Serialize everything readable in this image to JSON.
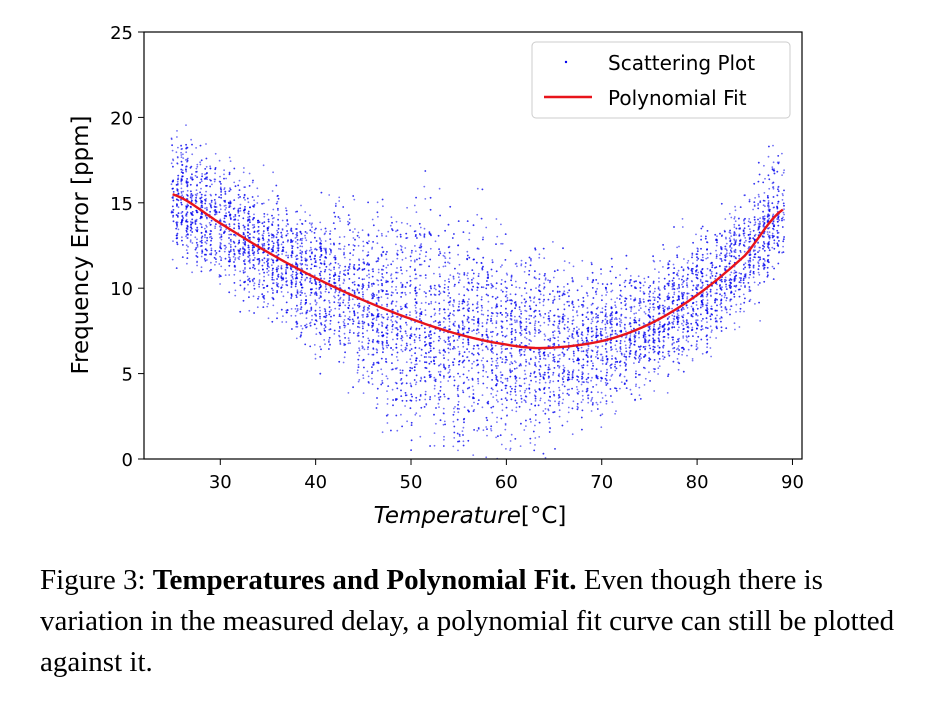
{
  "figure": {
    "caption_prefix": "Figure 3:",
    "caption_title": "Temperatures and Polynomial Fit.",
    "caption_body": "Even though there is variation in the measured delay, a polynomial fit curve can still be plotted against it."
  },
  "chart_data": {
    "type": "scatter",
    "xlabel": "Temperature[°C]",
    "ylabel": "Frequency Error [ppm]",
    "xlim": [
      22,
      91
    ],
    "ylim": [
      0,
      25
    ],
    "xticks": [
      30,
      40,
      50,
      60,
      70,
      80,
      90
    ],
    "yticks": [
      0,
      5,
      10,
      15,
      20,
      25
    ],
    "grid": false,
    "legend_position": "top-right",
    "colors": {
      "scatter": "#0000ee",
      "fit": "#e8141b"
    },
    "series": [
      {
        "name": "Scattering Plot",
        "kind": "scatter",
        "x_range": [
          25,
          89
        ],
        "approx_points": 9000,
        "center_curve": "fit",
        "spread_ppm": [
          3,
          6
        ]
      },
      {
        "name": "Polynomial Fit",
        "kind": "line",
        "x": [
          25,
          30,
          35,
          40,
          45,
          50,
          55,
          60,
          64,
          70,
          75,
          80,
          85,
          89
        ],
        "y": [
          15.5,
          13.8,
          12.1,
          10.6,
          9.3,
          8.2,
          7.3,
          6.7,
          6.5,
          6.9,
          7.9,
          9.6,
          11.9,
          14.6
        ]
      }
    ]
  }
}
